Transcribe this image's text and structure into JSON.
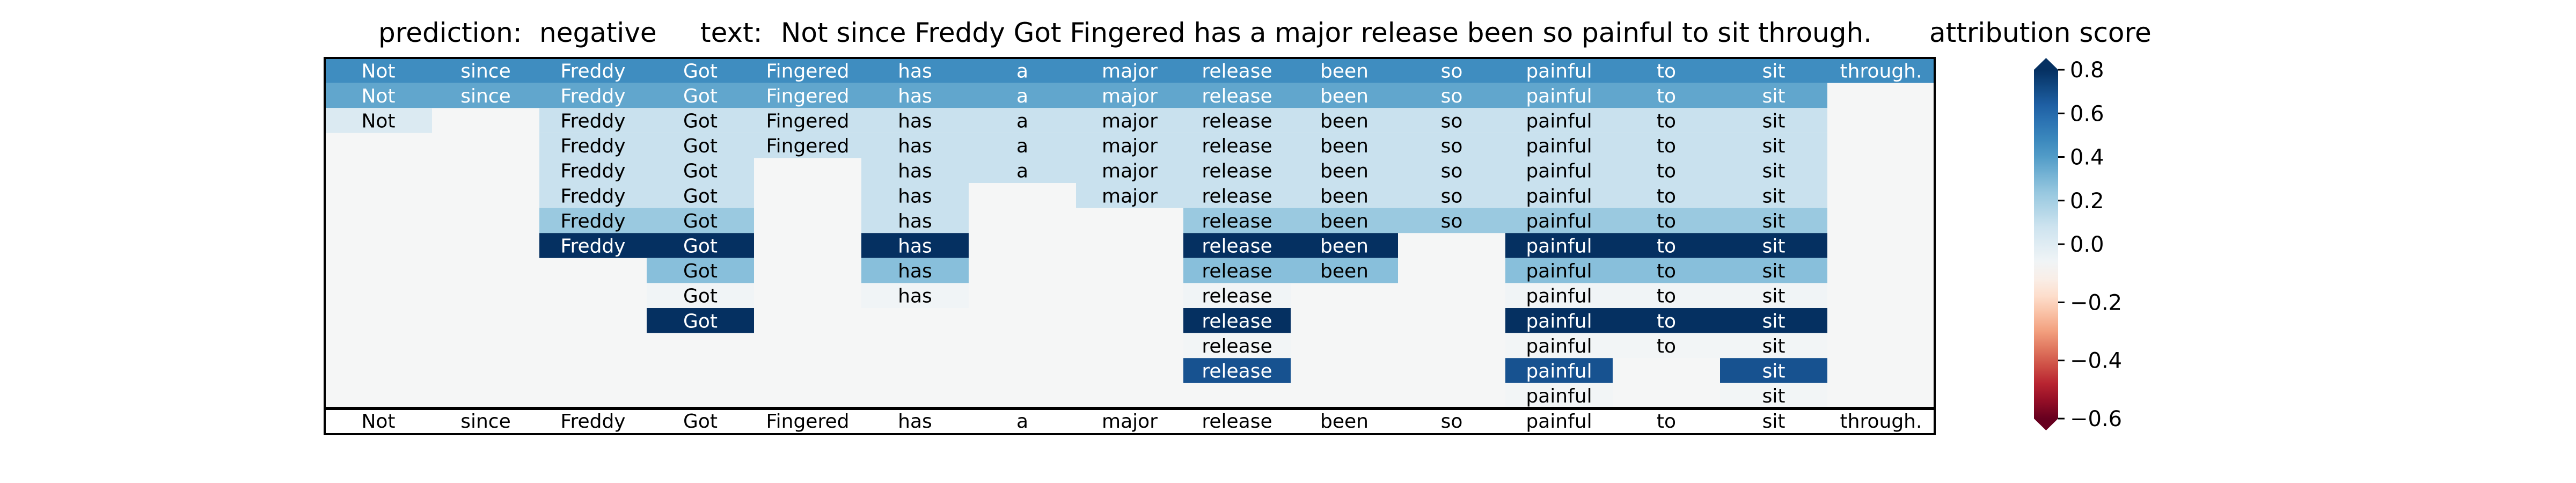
{
  "header": {
    "prediction_label": "prediction:",
    "prediction_value": "negative",
    "text_label": "text:",
    "text_value": "Not since Freddy Got Fingered has a major release been so painful to sit through.",
    "colorbar_title": "attribution score"
  },
  "chart_data": {
    "type": "heatmap",
    "title": "",
    "tokens": [
      "Not",
      "since",
      "Freddy",
      "Got",
      "Fingered",
      "has",
      "a",
      "major",
      "release",
      "been",
      "so",
      "painful",
      "to",
      "sit",
      "through."
    ],
    "hierarchy_rows": [
      [
        0.5,
        0.5,
        0.5,
        0.5,
        0.5,
        0.5,
        0.5,
        0.5,
        0.5,
        0.5,
        0.5,
        0.5,
        0.5,
        0.5,
        0.5
      ],
      [
        0.42,
        0.42,
        0.42,
        0.42,
        0.42,
        0.42,
        0.42,
        0.42,
        0.42,
        0.42,
        0.42,
        0.42,
        0.42,
        0.42,
        null
      ],
      [
        0.12,
        null,
        0.18,
        0.18,
        0.18,
        0.18,
        0.18,
        0.18,
        0.18,
        0.18,
        0.18,
        0.18,
        0.18,
        0.18,
        null
      ],
      [
        null,
        null,
        0.18,
        0.18,
        0.18,
        0.18,
        0.18,
        0.18,
        0.18,
        0.18,
        0.18,
        0.18,
        0.18,
        0.18,
        null
      ],
      [
        null,
        null,
        0.18,
        0.18,
        null,
        0.18,
        0.18,
        0.18,
        0.18,
        0.18,
        0.18,
        0.18,
        0.18,
        0.18,
        null
      ],
      [
        null,
        null,
        0.18,
        0.18,
        null,
        0.18,
        null,
        0.18,
        0.18,
        0.18,
        0.18,
        0.18,
        0.18,
        0.18,
        null
      ],
      [
        null,
        null,
        0.3,
        0.3,
        null,
        0.18,
        null,
        null,
        0.3,
        0.3,
        0.3,
        0.3,
        0.3,
        0.3,
        null
      ],
      [
        null,
        null,
        0.8,
        0.8,
        null,
        0.8,
        null,
        null,
        0.8,
        0.8,
        null,
        0.8,
        0.8,
        0.8,
        null
      ],
      [
        null,
        null,
        null,
        0.34,
        null,
        0.34,
        null,
        null,
        0.34,
        0.34,
        null,
        0.34,
        0.34,
        0.34,
        null
      ],
      [
        null,
        null,
        null,
        0.03,
        null,
        0.03,
        null,
        null,
        0.03,
        null,
        null,
        0.03,
        0.03,
        0.03,
        null
      ],
      [
        null,
        null,
        null,
        0.8,
        null,
        null,
        null,
        null,
        0.8,
        null,
        null,
        0.8,
        0.8,
        0.8,
        null
      ],
      [
        null,
        null,
        null,
        null,
        null,
        null,
        null,
        null,
        0.02,
        null,
        null,
        0.02,
        0.02,
        0.02,
        null
      ],
      [
        null,
        null,
        null,
        null,
        null,
        null,
        null,
        null,
        0.7,
        null,
        null,
        0.7,
        null,
        0.7,
        null
      ],
      [
        null,
        null,
        null,
        null,
        null,
        null,
        null,
        null,
        null,
        null,
        null,
        0.02,
        null,
        0.02,
        null
      ]
    ],
    "colorbar": {
      "colormap": "RdBu",
      "range": [
        -0.6,
        0.8
      ],
      "ticks": [
        0.8,
        0.6,
        0.4,
        0.2,
        0.0,
        -0.2,
        -0.4,
        -0.6
      ],
      "tick_labels": [
        "0.8",
        "0.6",
        "0.4",
        "0.2",
        "0.0",
        "−0.2",
        "−0.4",
        "−0.6"
      ],
      "extend": "both"
    },
    "grid": false
  }
}
